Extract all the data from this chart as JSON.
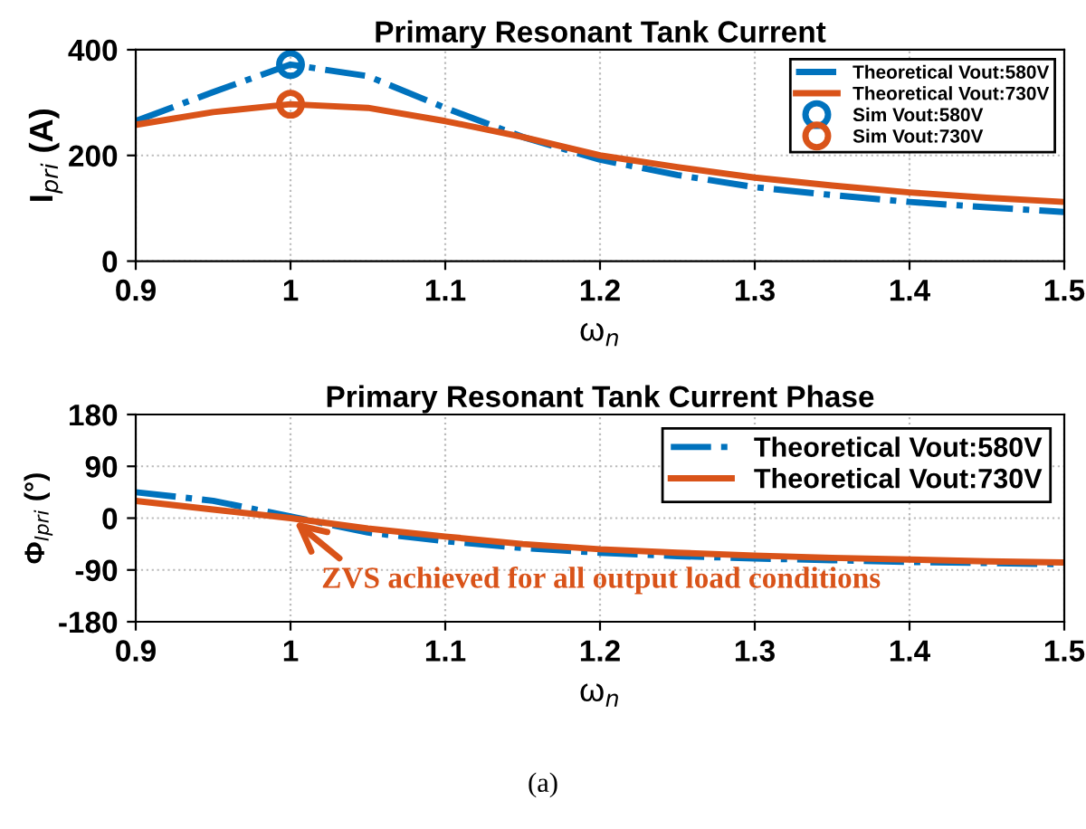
{
  "chart_data": [
    {
      "type": "line",
      "title": "Primary Resonant Tank Current",
      "xlabel": "ω$_{n}$",
      "ylabel": "I$_{pri}$ (A)",
      "x": [
        0.9,
        0.95,
        1.0,
        1.05,
        1.1,
        1.15,
        1.2,
        1.25,
        1.3,
        1.35,
        1.4,
        1.45,
        1.5
      ],
      "series": [
        {
          "name": "Theoretical Vout:580V",
          "color": "#0072bd",
          "line_style": "dashdot",
          "marker": "none",
          "values": [
            265,
            320,
            372,
            350,
            290,
            235,
            192,
            163,
            140,
            125,
            112,
            102,
            93
          ]
        },
        {
          "name": "Theoretical Vout:730V",
          "color": "#d95319",
          "line_style": "solid",
          "marker": "none",
          "values": [
            258,
            282,
            297,
            290,
            265,
            235,
            200,
            178,
            158,
            143,
            130,
            120,
            112
          ]
        },
        {
          "name": "Sim Vout:580V",
          "type": "scatter",
          "color": "#0072bd",
          "marker": "circle",
          "x": [
            1.0
          ],
          "values": [
            372
          ]
        },
        {
          "name": "Sim Vout:730V",
          "type": "scatter",
          "color": "#d95319",
          "marker": "circle",
          "x": [
            1.0
          ],
          "values": [
            297
          ]
        }
      ],
      "xlim": [
        0.9,
        1.5
      ],
      "xticks": [
        0.9,
        1,
        1.1,
        1.2,
        1.3,
        1.4,
        1.5
      ],
      "ylim": [
        0,
        400
      ],
      "yticks": [
        0,
        200,
        400
      ],
      "grid": true,
      "legend": "top right"
    },
    {
      "type": "line",
      "title": "Primary Resonant Tank Current Phase",
      "xlabel": "ω$_{n}$",
      "ylabel": "Φ$_{Ipri}$ (°)",
      "x": [
        0.9,
        0.95,
        1.0,
        1.05,
        1.1,
        1.15,
        1.2,
        1.25,
        1.3,
        1.35,
        1.4,
        1.45,
        1.5
      ],
      "series": [
        {
          "name": "Theoretical Vout:580V",
          "color": "#0072bd",
          "line_style": "dashdot",
          "values": [
            45,
            30,
            3,
            -25,
            -40,
            -52,
            -60,
            -66,
            -70,
            -73,
            -76,
            -78,
            -80
          ]
        },
        {
          "name": "Theoretical Vout:730V",
          "color": "#d95319",
          "line_style": "solid",
          "values": [
            30,
            15,
            0,
            -18,
            -32,
            -45,
            -54,
            -60,
            -65,
            -69,
            -72,
            -75,
            -77
          ]
        }
      ],
      "xlim": [
        0.9,
        1.5
      ],
      "xticks": [
        0.9,
        1,
        1.1,
        1.2,
        1.3,
        1.4,
        1.5
      ],
      "ylim": [
        -180,
        180
      ],
      "yticks": [
        -180,
        -90,
        0,
        90,
        180
      ],
      "grid": true,
      "legend": "top right",
      "annotations": [
        {
          "text": "ZVS achieved for all output load conditions",
          "x": 1.0,
          "y": 0
        },
        "(a)"
      ]
    }
  ]
}
